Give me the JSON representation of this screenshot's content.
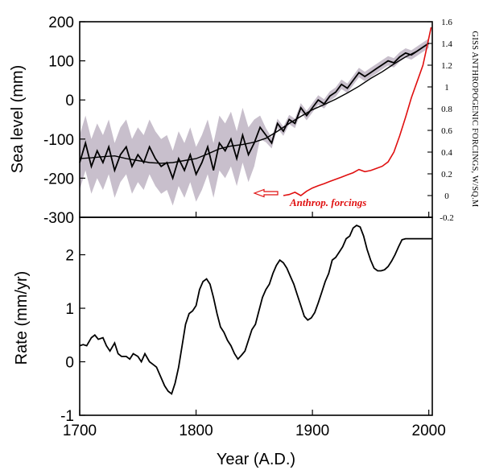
{
  "chart_data": [
    {
      "type": "line",
      "panel": "top",
      "title": "",
      "xlabel": "",
      "ylabel": "Sea level (mm)",
      "y2label": "GISS ANTHROPOGENIC FORCINGS, W/SQ.M",
      "xlim": [
        1700,
        2003
      ],
      "ylim": [
        -300,
        200
      ],
      "y2lim": [
        -0.2,
        1.6
      ],
      "yticks": [
        "200",
        "100",
        "0",
        "-100",
        "-200",
        "-300"
      ],
      "y2ticks": [
        "1.6",
        "1.4",
        "1.2",
        "1",
        "0.8",
        "0.6",
        "0.4",
        "0.2",
        "0",
        "-0.2"
      ],
      "grid": false,
      "annotation": {
        "text": "Anthrop. forcings",
        "color": "#e01010"
      },
      "series": [
        {
          "role": "annual sea level reconstruction with uncertainty band",
          "color": "#000000",
          "band_color": "#c8bfcc",
          "x": [
            1700,
            1705,
            1710,
            1715,
            1720,
            1725,
            1730,
            1735,
            1740,
            1745,
            1750,
            1755,
            1760,
            1765,
            1770,
            1775,
            1780,
            1785,
            1790,
            1795,
            1800,
            1805,
            1810,
            1815,
            1820,
            1825,
            1830,
            1835,
            1840,
            1845,
            1850,
            1855,
            1860,
            1865,
            1870,
            1875,
            1880,
            1885,
            1890,
            1895,
            1900,
            1905,
            1910,
            1915,
            1920,
            1925,
            1930,
            1935,
            1940,
            1945,
            1950,
            1955,
            1960,
            1965,
            1970,
            1975,
            1980,
            1985,
            1990,
            1995,
            2000
          ],
          "y": [
            -160,
            -110,
            -170,
            -130,
            -160,
            -120,
            -180,
            -140,
            -120,
            -170,
            -140,
            -160,
            -120,
            -150,
            -170,
            -160,
            -200,
            -150,
            -180,
            -140,
            -190,
            -160,
            -120,
            -180,
            -110,
            -130,
            -100,
            -150,
            -90,
            -140,
            -110,
            -70,
            -90,
            -110,
            -60,
            -80,
            -50,
            -60,
            -20,
            -40,
            -20,
            0,
            -10,
            10,
            20,
            40,
            30,
            50,
            70,
            60,
            70,
            80,
            90,
            100,
            95,
            110,
            120,
            115,
            125,
            135,
            145
          ],
          "band_halfwidth": [
            70,
            70,
            70,
            70,
            70,
            70,
            70,
            70,
            70,
            70,
            70,
            70,
            70,
            70,
            70,
            70,
            70,
            70,
            70,
            70,
            70,
            70,
            70,
            70,
            70,
            70,
            70,
            70,
            70,
            70,
            60,
            30,
            18,
            14,
            12,
            12,
            12,
            12,
            12,
            12,
            12,
            12,
            12,
            12,
            12,
            12,
            12,
            12,
            12,
            12,
            12,
            12,
            12,
            12,
            12,
            12,
            12,
            12,
            12,
            12,
            12
          ]
        },
        {
          "role": "smoothed sea level",
          "color": "#000000",
          "x": [
            1700,
            1710,
            1720,
            1730,
            1740,
            1750,
            1760,
            1770,
            1780,
            1790,
            1800,
            1810,
            1820,
            1830,
            1840,
            1850,
            1860,
            1870,
            1880,
            1890,
            1900,
            1910,
            1920,
            1930,
            1940,
            1950,
            1960,
            1970,
            1980,
            1990,
            2000
          ],
          "y": [
            -150,
            -148,
            -145,
            -143,
            -150,
            -155,
            -160,
            -162,
            -160,
            -155,
            -150,
            -138,
            -125,
            -118,
            -114,
            -108,
            -98,
            -80,
            -60,
            -42,
            -25,
            -12,
            2,
            18,
            35,
            55,
            72,
            92,
            110,
            125,
            145
          ]
        },
        {
          "role": "anthropogenic forcings (right axis, W/m²)",
          "color": "#e01010",
          "axis": "right",
          "x": [
            1875,
            1880,
            1885,
            1890,
            1895,
            1900,
            1905,
            1910,
            1915,
            1920,
            1925,
            1930,
            1935,
            1940,
            1945,
            1950,
            1955,
            1960,
            1965,
            1970,
            1975,
            1980,
            1985,
            1990,
            1995,
            1998,
            2000,
            2002
          ],
          "y": [
            0.0,
            0.01,
            0.03,
            0.0,
            0.04,
            0.07,
            0.09,
            0.11,
            0.13,
            0.15,
            0.17,
            0.19,
            0.21,
            0.24,
            0.22,
            0.23,
            0.25,
            0.27,
            0.31,
            0.4,
            0.55,
            0.72,
            0.9,
            1.05,
            1.2,
            1.35,
            1.45,
            1.55
          ]
        }
      ]
    },
    {
      "type": "line",
      "panel": "bottom",
      "title": "",
      "xlabel": "Year (A.D.)",
      "ylabel": "Rate (mm/yr)",
      "xlim": [
        1700,
        2003
      ],
      "ylim": [
        -1,
        2.7
      ],
      "xticks": [
        "1700",
        "1800",
        "1900",
        "2000"
      ],
      "yticks": [
        "2",
        "1",
        "0",
        "-1"
      ],
      "grid": false,
      "series": [
        {
          "role": "rate of sea level rise",
          "color": "#000000",
          "x": [
            1700,
            1703,
            1706,
            1710,
            1713,
            1716,
            1720,
            1723,
            1726,
            1730,
            1733,
            1736,
            1740,
            1743,
            1746,
            1750,
            1753,
            1756,
            1760,
            1763,
            1766,
            1770,
            1773,
            1776,
            1779,
            1782,
            1785,
            1788,
            1791,
            1794,
            1797,
            1800,
            1803,
            1806,
            1809,
            1812,
            1815,
            1818,
            1821,
            1824,
            1827,
            1830,
            1833,
            1836,
            1839,
            1842,
            1845,
            1848,
            1851,
            1854,
            1857,
            1860,
            1863,
            1866,
            1869,
            1872,
            1875,
            1878,
            1881,
            1884,
            1887,
            1890,
            1893,
            1896,
            1899,
            1902,
            1905,
            1908,
            1911,
            1914,
            1917,
            1920,
            1923,
            1926,
            1929,
            1932,
            1935,
            1938,
            1941,
            1944,
            1947,
            1950,
            1953,
            1956,
            1959,
            1962,
            1965,
            1968,
            1971,
            1974,
            1977,
            1980,
            1983,
            1986,
            1989,
            1992,
            1995,
            1998,
            2001,
            2003
          ],
          "y": [
            0.3,
            0.32,
            0.3,
            0.45,
            0.5,
            0.42,
            0.45,
            0.3,
            0.2,
            0.35,
            0.15,
            0.1,
            0.1,
            0.05,
            0.15,
            0.1,
            0.0,
            0.15,
            0.0,
            -0.05,
            -0.1,
            -0.3,
            -0.45,
            -0.55,
            -0.6,
            -0.4,
            -0.1,
            0.3,
            0.7,
            0.9,
            0.95,
            1.05,
            1.35,
            1.5,
            1.55,
            1.45,
            1.2,
            0.9,
            0.65,
            0.55,
            0.4,
            0.3,
            0.15,
            0.05,
            0.12,
            0.2,
            0.4,
            0.6,
            0.7,
            0.95,
            1.2,
            1.35,
            1.45,
            1.65,
            1.8,
            1.9,
            1.85,
            1.75,
            1.6,
            1.45,
            1.25,
            1.05,
            0.85,
            0.78,
            0.82,
            0.92,
            1.1,
            1.3,
            1.5,
            1.65,
            1.9,
            1.95,
            2.05,
            2.15,
            2.3,
            2.35,
            2.5,
            2.55,
            2.52,
            2.35,
            2.1,
            1.9,
            1.75,
            1.7,
            1.7,
            1.72,
            1.78,
            1.88,
            2.0,
            2.15,
            2.28,
            2.3,
            2.3,
            2.3,
            2.3,
            2.3,
            2.3,
            2.3,
            2.3,
            2.3
          ]
        }
      ]
    }
  ]
}
